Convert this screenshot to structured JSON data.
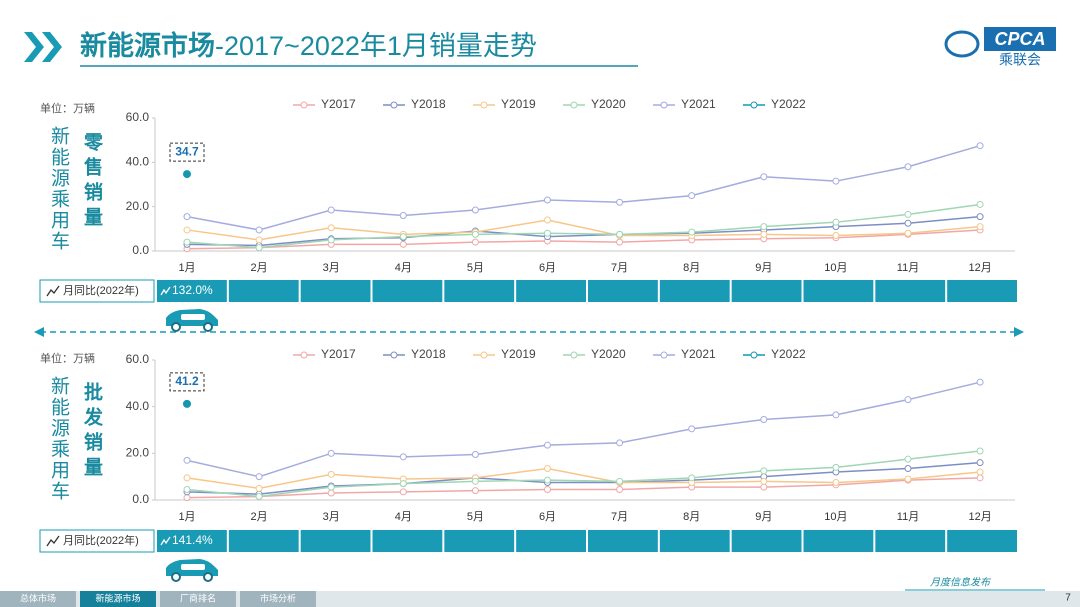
{
  "header": {
    "title_main": "新能源市场",
    "title_rest": "-2017~2022年1月销量走势",
    "logo": "CPCA",
    "logo_sub": "乘联会"
  },
  "chart_data": [
    {
      "type": "line",
      "side_label": "新能源乘用车",
      "metric": "零售销量",
      "unit": "单位：万辆",
      "categories": [
        "1月",
        "2月",
        "3月",
        "4月",
        "5月",
        "6月",
        "7月",
        "8月",
        "9月",
        "10月",
        "11月",
        "12月"
      ],
      "ylim": [
        0,
        60
      ],
      "yticks": [
        {
          "value": 0,
          "label": "0.0"
        },
        {
          "value": 20,
          "label": "20.0"
        },
        {
          "value": 40,
          "label": "40.0"
        },
        {
          "value": 60,
          "label": "60.0"
        }
      ],
      "series": [
        {
          "name": "Y2017",
          "color": "#f2a7a7",
          "values": [
            1,
            1.5,
            3,
            3,
            4,
            4.5,
            4,
            5,
            5.5,
            6,
            7.5,
            9.5
          ]
        },
        {
          "name": "Y2018",
          "color": "#7d8ec4",
          "values": [
            3,
            2.5,
            5.5,
            6,
            9,
            6.5,
            7.5,
            8,
            9.5,
            11,
            12.5,
            15.5
          ]
        },
        {
          "name": "Y2019",
          "color": "#f7c68a",
          "values": [
            9.5,
            5,
            10.5,
            7.5,
            8.5,
            14,
            7,
            7,
            7.5,
            7,
            8,
            11
          ]
        },
        {
          "name": "Y2020",
          "color": "#9fd6b3",
          "values": [
            4,
            1.5,
            5,
            6.5,
            7.5,
            8,
            7.5,
            8.5,
            11,
            13,
            16.5,
            21
          ]
        },
        {
          "name": "Y2021",
          "color": "#a3acdf",
          "values": [
            15.5,
            9.5,
            18.5,
            16,
            18.5,
            23,
            22,
            25,
            33.5,
            31.5,
            38,
            47.5
          ]
        },
        {
          "name": "Y2022",
          "color": "#1597b0",
          "values": [
            34.7,
            null,
            null,
            null,
            null,
            null,
            null,
            null,
            null,
            null,
            null,
            null
          ]
        }
      ],
      "yoy": {
        "label": "月同比(2022年)",
        "values": [
          132.0
        ],
        "value_labels": [
          "132.0%"
        ]
      }
    },
    {
      "type": "line",
      "side_label": "新能源乘用车",
      "metric": "批发销量",
      "unit": "单位：万辆",
      "categories": [
        "1月",
        "2月",
        "3月",
        "4月",
        "5月",
        "6月",
        "7月",
        "8月",
        "9月",
        "10月",
        "11月",
        "12月"
      ],
      "ylim": [
        0,
        60
      ],
      "yticks": [
        {
          "value": 0,
          "label": "0.0"
        },
        {
          "value": 20,
          "label": "20.0"
        },
        {
          "value": 40,
          "label": "40.0"
        },
        {
          "value": 60,
          "label": "60.0"
        }
      ],
      "series": [
        {
          "name": "Y2017",
          "color": "#f2a7a7",
          "values": [
            1,
            1.5,
            3,
            3.5,
            4,
            4.5,
            4.5,
            5.5,
            5.5,
            6.5,
            8.5,
            9.5
          ]
        },
        {
          "name": "Y2018",
          "color": "#7d8ec4",
          "values": [
            3.5,
            2.5,
            6,
            7,
            9.5,
            7.5,
            7.5,
            8.5,
            10,
            12,
            13.5,
            16
          ]
        },
        {
          "name": "Y2019",
          "color": "#f7c68a",
          "values": [
            9.5,
            5,
            11,
            9,
            9.5,
            13.5,
            7.5,
            7.5,
            8,
            7.5,
            9,
            12
          ]
        },
        {
          "name": "Y2020",
          "color": "#9fd6b3",
          "values": [
            4.5,
            1.5,
            5.5,
            7,
            8,
            8.5,
            8,
            9.5,
            12.5,
            14,
            17.5,
            21
          ]
        },
        {
          "name": "Y2021",
          "color": "#a3acdf",
          "values": [
            17,
            10,
            20,
            18.5,
            19.5,
            23.5,
            24.5,
            30.5,
            34.5,
            36.5,
            43,
            50.5
          ]
        },
        {
          "name": "Y2022",
          "color": "#1597b0",
          "values": [
            41.2,
            null,
            null,
            null,
            null,
            null,
            null,
            null,
            null,
            null,
            null,
            null
          ]
        }
      ],
      "yoy": {
        "label": "月同比(2022年)",
        "values": [
          141.4
        ],
        "value_labels": [
          "141.4%"
        ]
      }
    }
  ],
  "footer": {
    "tabs": [
      "总体市场",
      "新能源市场",
      "厂商排名",
      "市场分析"
    ],
    "caption": "月度信息发布",
    "page": "7"
  }
}
